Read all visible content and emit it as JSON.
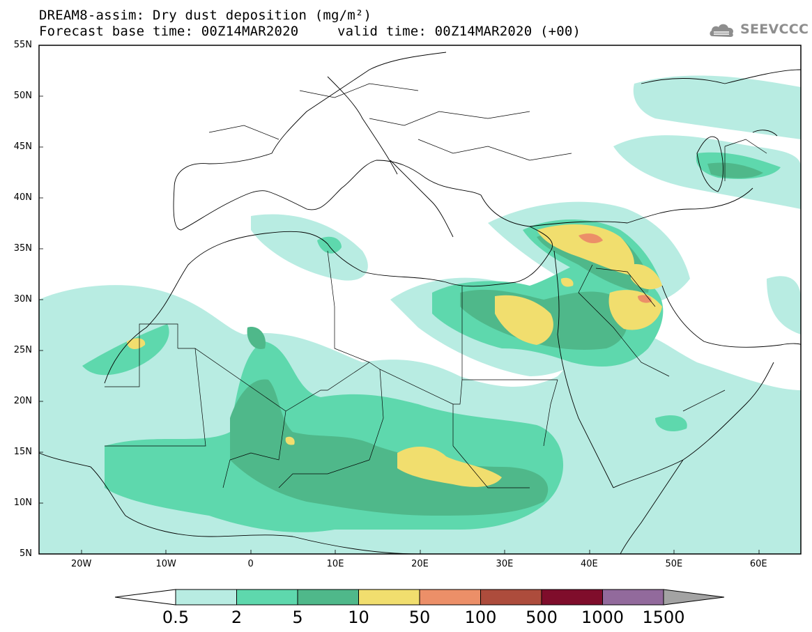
{
  "title": {
    "line1": "DREAM8-assim: Dry dust deposition (mg/m²)",
    "line2": "Forecast base time: 00Z14MAR2020",
    "line2b": "valid time: 00Z14MAR2020 (+00)"
  },
  "logo": {
    "text": "SEEVCCC",
    "icon": "cloud-icon"
  },
  "axes": {
    "lat_labels": [
      "55N",
      "50N",
      "45N",
      "40N",
      "35N",
      "30N",
      "25N",
      "20N",
      "15N",
      "10N",
      "5N"
    ],
    "lon_labels": [
      "20W",
      "10W",
      "0",
      "10E",
      "20E",
      "30E",
      "40E",
      "50E",
      "60E"
    ],
    "lon_range": [
      -25,
      65
    ],
    "lat_range": [
      5,
      55
    ]
  },
  "colorbar": {
    "labels": [
      "0.5",
      "2",
      "5",
      "10",
      "50",
      "100",
      "500",
      "1000",
      "1500"
    ],
    "colors": [
      "#b8ece2",
      "#5ed8ad",
      "#4fb88a",
      "#f1de6e",
      "#ec8f68",
      "#ad4c3c",
      "#7f0d2b",
      "#926a9c"
    ],
    "under_color": "#ffffff",
    "over_color": "#a3a3a3"
  },
  "palette": {
    "light": "#b8ece2",
    "mid": "#5ed8ad",
    "dark": "#4fb88a",
    "yellow": "#f1de6e",
    "orange": "#ec8f68"
  }
}
